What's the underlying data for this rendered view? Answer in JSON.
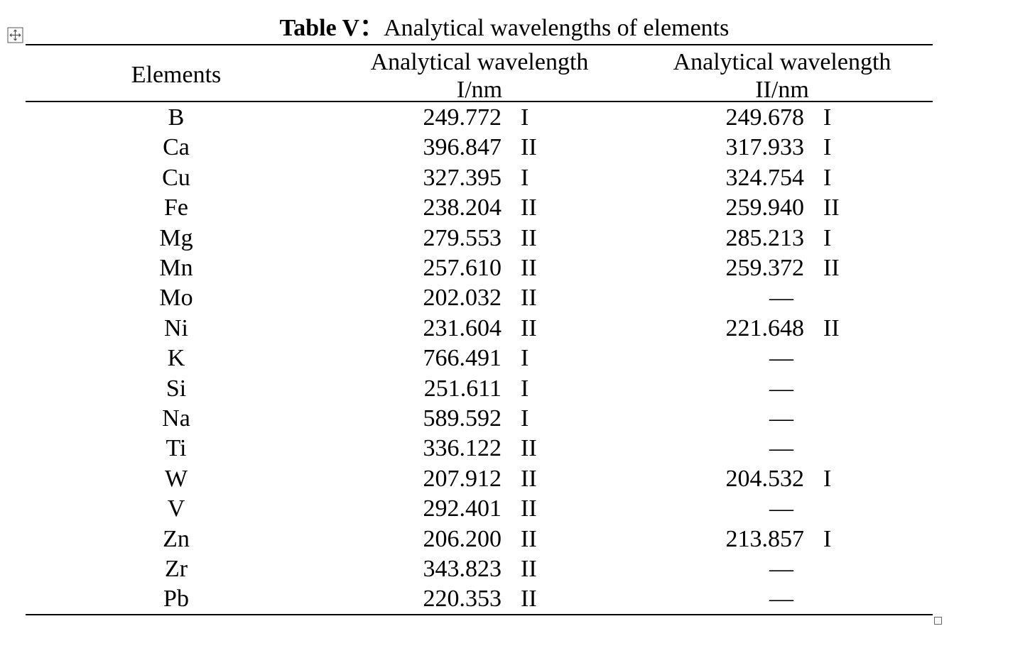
{
  "title": {
    "label": "Table V：",
    "text": "Analytical wavelengths of elements"
  },
  "table": {
    "headers": [
      [
        "Elements"
      ],
      [
        "Analytical wavelength",
        "I/nm"
      ],
      [
        "Analytical wavelength",
        "II/nm"
      ]
    ],
    "rows": [
      [
        "B",
        "249.772",
        "I",
        "249.678",
        "I"
      ],
      [
        "Ca",
        "396.847",
        "II",
        "317.933",
        "I"
      ],
      [
        "Cu",
        "327.395",
        "I",
        "324.754",
        "I"
      ],
      [
        "Fe",
        "238.204",
        "II",
        "259.940",
        "II"
      ],
      [
        "Mg",
        "279.553",
        "II",
        "285.213",
        "I"
      ],
      [
        "Mn",
        "257.610",
        "II",
        "259.372",
        "II"
      ],
      [
        "Mo",
        "202.032",
        "II",
        "—",
        ""
      ],
      [
        "Ni",
        "231.604",
        "II",
        "221.648",
        "II"
      ],
      [
        "K",
        "766.491",
        "I",
        "—",
        ""
      ],
      [
        "Si",
        "251.611",
        "I",
        "—",
        ""
      ],
      [
        "Na",
        "589.592",
        "I",
        "—",
        ""
      ],
      [
        "Ti",
        "336.122",
        "II",
        "—",
        ""
      ],
      [
        "W",
        "207.912",
        "II",
        "204.532",
        "I"
      ],
      [
        "V",
        "292.401",
        "II",
        "—",
        ""
      ],
      [
        "Zn",
        "206.200",
        "II",
        "213.857",
        "I"
      ],
      [
        "Zr",
        "343.823",
        "II",
        "—",
        ""
      ],
      [
        "Pb",
        "220.353",
        "II",
        "—",
        ""
      ]
    ]
  }
}
